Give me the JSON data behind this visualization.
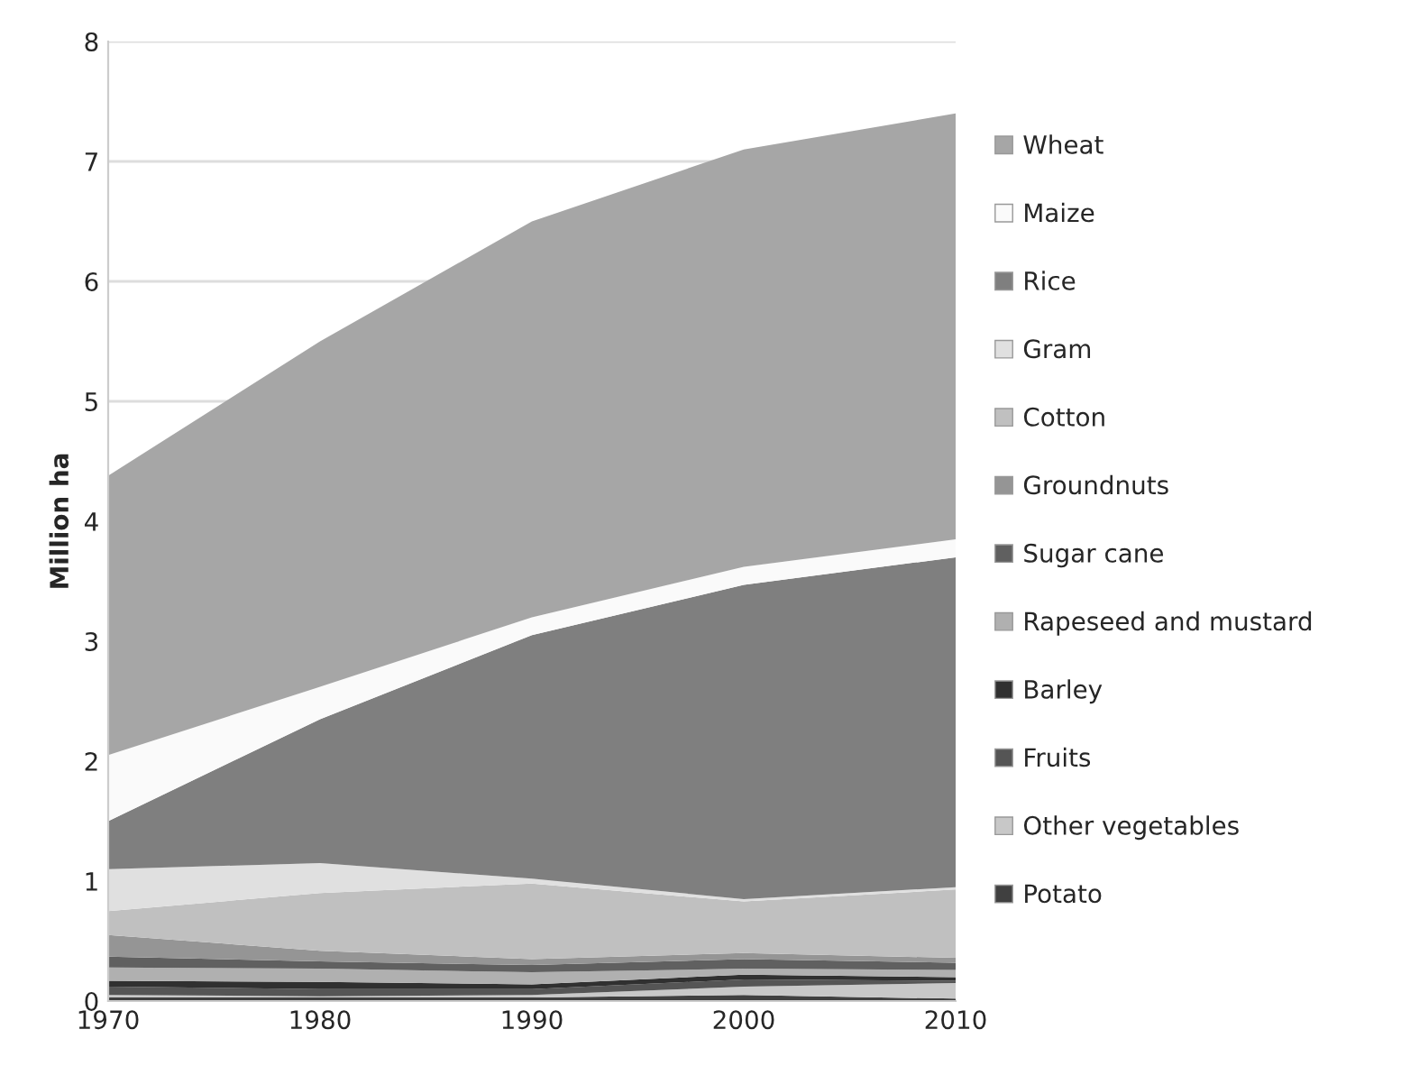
{
  "chart_data": {
    "type": "area",
    "stacked": true,
    "ylabel": "Million ha",
    "x": [
      1970,
      1980,
      1990,
      2000,
      2010
    ],
    "xlim": [
      1970,
      2010
    ],
    "xticks": [
      1970,
      1980,
      1990,
      2000,
      2010
    ],
    "ylim": [
      0,
      8
    ],
    "yticks": [
      0,
      1,
      2,
      3,
      4,
      5,
      6,
      7,
      8
    ],
    "grid": "y",
    "legend": "right",
    "series": [
      {
        "name": "Potato",
        "color": "#404040",
        "values": [
          0.03,
          0.03,
          0.03,
          0.05,
          0.02
        ]
      },
      {
        "name": "Other vegetables",
        "color": "#c8c8c8",
        "values": [
          0.02,
          0.01,
          0.02,
          0.07,
          0.13
        ]
      },
      {
        "name": "Fruits",
        "color": "#555555",
        "values": [
          0.07,
          0.06,
          0.05,
          0.06,
          0.02
        ]
      },
      {
        "name": "Barley",
        "color": "#303030",
        "values": [
          0.05,
          0.06,
          0.04,
          0.04,
          0.03
        ]
      },
      {
        "name": "Rapeseed and mustard",
        "color": "#b0b0b0",
        "values": [
          0.11,
          0.11,
          0.1,
          0.05,
          0.06
        ]
      },
      {
        "name": "Sugar cane",
        "color": "#606060",
        "values": [
          0.09,
          0.06,
          0.06,
          0.08,
          0.06
        ]
      },
      {
        "name": "Groundnuts",
        "color": "#959595",
        "values": [
          0.18,
          0.09,
          0.05,
          0.05,
          0.04
        ]
      },
      {
        "name": "Cotton",
        "color": "#c0c0c0",
        "values": [
          0.2,
          0.48,
          0.63,
          0.43,
          0.57
        ]
      },
      {
        "name": "Gram",
        "color": "#e0e0e0",
        "values": [
          0.35,
          0.25,
          0.04,
          0.02,
          0.02
        ]
      },
      {
        "name": "Rice",
        "color": "#7f7f7f",
        "values": [
          0.4,
          1.2,
          2.03,
          2.62,
          2.75
        ]
      },
      {
        "name": "Maize",
        "color": "#fafafa",
        "values": [
          0.55,
          0.27,
          0.15,
          0.15,
          0.15
        ]
      },
      {
        "name": "Wheat",
        "color": "#a6a6a6",
        "values": [
          2.33,
          2.88,
          3.3,
          3.48,
          3.55
        ]
      }
    ]
  }
}
